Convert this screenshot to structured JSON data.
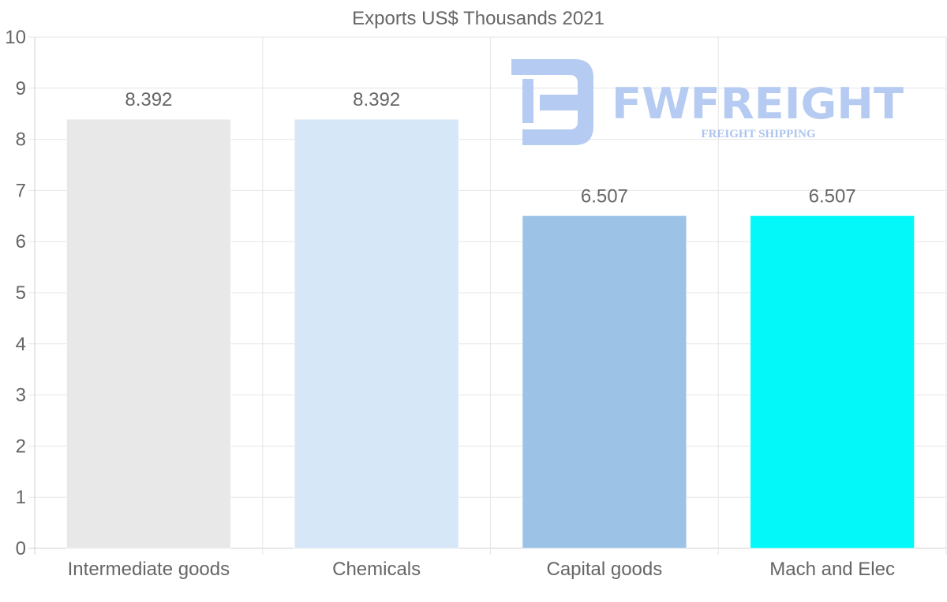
{
  "chart_data": {
    "type": "bar",
    "title": "Exports US$ Thousands 2021",
    "categories": [
      "Intermediate goods",
      "Chemicals",
      "Capital goods",
      "Mach and Elec"
    ],
    "values": [
      8.392,
      8.392,
      6.507,
      6.507
    ],
    "data_labels": [
      "8.392",
      "8.392",
      "6.507",
      "6.507"
    ],
    "colors": [
      "#e8e8e8",
      "#d6e7f8",
      "#9cc3e6",
      "#03f9f9"
    ],
    "xlabel": "",
    "ylabel": "",
    "ylim": [
      0,
      10
    ],
    "yticks": [
      "0",
      "1",
      "2",
      "3",
      "4",
      "5",
      "6",
      "7",
      "8",
      "9",
      "10"
    ],
    "grid": true
  },
  "watermark": {
    "brand": "FWFREIGHT",
    "tagline": "FREIGHT SHIPPING",
    "color": "#b3c9f2"
  }
}
